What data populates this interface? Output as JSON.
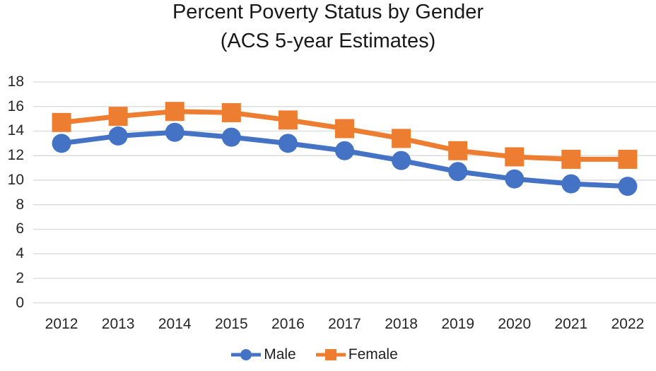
{
  "chart_data": {
    "type": "line",
    "title": "Percent Poverty Status by Gender",
    "subtitle": "(ACS 5-year Estimates)",
    "categories": [
      "2012",
      "2013",
      "2014",
      "2015",
      "2016",
      "2017",
      "2018",
      "2019",
      "2020",
      "2021",
      "2022"
    ],
    "series": [
      {
        "name": "Male",
        "color": "#4472C4",
        "marker": "circle",
        "values": [
          13.0,
          13.6,
          13.9,
          13.5,
          13.0,
          12.4,
          11.6,
          10.7,
          10.1,
          9.7,
          9.5
        ]
      },
      {
        "name": "Female",
        "color": "#ED7D31",
        "marker": "square",
        "values": [
          14.7,
          15.2,
          15.6,
          15.5,
          14.9,
          14.2,
          13.4,
          12.4,
          11.9,
          11.7,
          11.7
        ]
      }
    ],
    "xlabel": "",
    "ylabel": "",
    "ylim": [
      0,
      18
    ],
    "ytick_step": 2,
    "yticks": [
      0,
      2,
      4,
      6,
      8,
      10,
      12,
      14,
      16,
      18
    ],
    "grid": true,
    "gridline_color": "#D9D9D9",
    "text_color": "#262626",
    "legend_position": "bottom",
    "legend": [
      "Male",
      "Female"
    ]
  }
}
